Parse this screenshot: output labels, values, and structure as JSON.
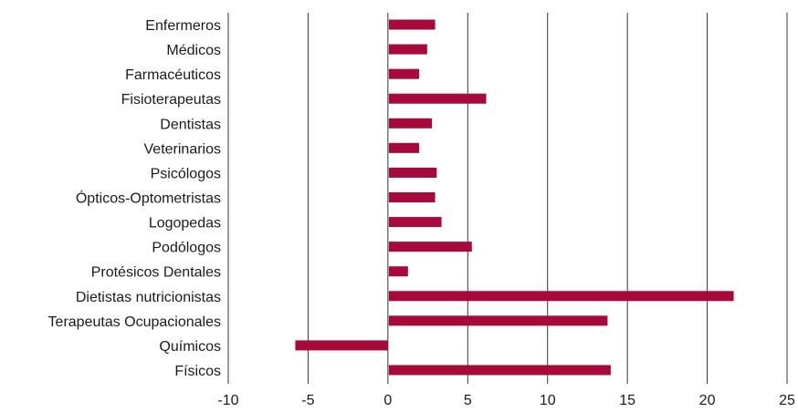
{
  "chart_data": {
    "type": "bar",
    "orientation": "horizontal",
    "categories": [
      "Enfermeros",
      "Médicos",
      "Farmacéuticos",
      "Fisioterapeutas",
      "Dentistas",
      "Veterinarios",
      "Psicólogos",
      "Ópticos-Optometristas",
      "Logopedas",
      "Podólogos",
      "Protésicos Dentales",
      "Dietistas nutricionistas",
      "Terapeutas Ocupacionales",
      "Químicos",
      "Físicos"
    ],
    "values": [
      2.9,
      2.4,
      1.9,
      6.1,
      2.7,
      1.9,
      3.0,
      2.9,
      3.3,
      5.2,
      1.2,
      21.6,
      13.7,
      -5.8,
      13.9
    ],
    "xlim": [
      -10,
      25
    ],
    "xticks": [
      "-10",
      "-5",
      "0",
      "5",
      "10",
      "15",
      "20",
      "25"
    ],
    "grid": true,
    "bar_color": "#a8083a"
  }
}
